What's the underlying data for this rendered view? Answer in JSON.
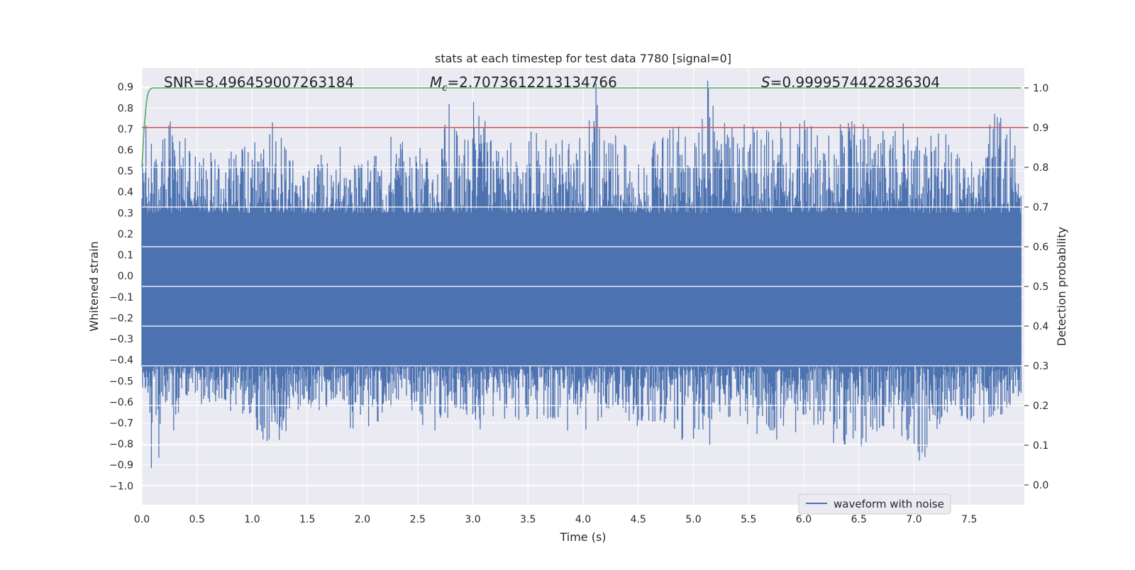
{
  "chart_data": {
    "type": "line",
    "title": "stats at each timestep for test data 7780 [signal=0]",
    "xlabel": "Time (s)",
    "ylabel": "Whitened strain",
    "ylabel_right": "Detection probability",
    "xlim": [
      0.0,
      8.0
    ],
    "ylim": [
      -1.09,
      0.99
    ],
    "ylim_right": [
      -0.05,
      1.05
    ],
    "x_ticks": [
      "0.0",
      "0.5",
      "1.0",
      "1.5",
      "2.0",
      "2.5",
      "3.0",
      "3.5",
      "4.0",
      "4.5",
      "5.0",
      "5.5",
      "6.0",
      "6.5",
      "7.0",
      "7.5"
    ],
    "y_ticks": [
      "0.9",
      "0.8",
      "0.7",
      "0.6",
      "0.5",
      "0.4",
      "0.3",
      "0.2",
      "0.1",
      "0.0",
      "−0.1",
      "−0.2",
      "−0.3",
      "−0.4",
      "−0.5",
      "−0.6",
      "−0.7",
      "−0.8",
      "−0.9",
      "−1.0"
    ],
    "y_ticks_right": [
      "1.0",
      "0.9",
      "0.8",
      "0.7",
      "0.6",
      "0.5",
      "0.4",
      "0.3",
      "0.2",
      "0.1",
      "0.0"
    ],
    "annotations": {
      "snr": "SNR=8.496459007263184",
      "mc_symbol": "M",
      "mc_subscript": "c",
      "mc_value": "=2.7073612213134766",
      "s_symbol": "S",
      "s_value": "=0.9999574422836304"
    },
    "legend": {
      "label": "waveform with noise",
      "position": "lower-right"
    },
    "grid": true,
    "colors": {
      "waveform": "#4c72b0",
      "detection_probability": "#55a868",
      "threshold": "#c44e52",
      "background": "#eaeaf2",
      "grid": "#ffffff"
    },
    "series": [
      {
        "name": "waveform with noise",
        "axis": "left",
        "description_free_values": true,
        "x": [
          0.0,
          0.03,
          0.05,
          0.08,
          0.12,
          0.15,
          0.18,
          0.22,
          0.25,
          0.3,
          0.38,
          0.5,
          0.65,
          0.8,
          0.95,
          1.1,
          1.2,
          1.3,
          1.4,
          1.5,
          1.65,
          1.8,
          1.98,
          2.1,
          2.27,
          2.4,
          2.58,
          2.7,
          2.8,
          2.9,
          3.02,
          3.2,
          3.4,
          3.55,
          3.7,
          3.85,
          4.0,
          4.1,
          4.2,
          4.35,
          4.5,
          4.6,
          4.75,
          4.9,
          5.05,
          5.15,
          5.2,
          5.35,
          5.5,
          5.65,
          5.8,
          6.0,
          6.15,
          6.3,
          6.45,
          6.6,
          6.75,
          6.9,
          7.07,
          7.2,
          7.35,
          7.5,
          7.6,
          7.75,
          7.8,
          7.9,
          7.97
        ],
        "upper": [
          0.65,
          0.84,
          0.55,
          0.62,
          0.83,
          0.6,
          0.82,
          0.6,
          0.84,
          0.65,
          0.7,
          0.6,
          0.6,
          0.62,
          0.63,
          0.65,
          0.8,
          0.63,
          0.6,
          0.5,
          0.6,
          0.62,
          0.55,
          0.6,
          0.77,
          0.6,
          0.62,
          0.65,
          0.88,
          0.65,
          0.86,
          0.62,
          0.65,
          0.7,
          0.65,
          0.7,
          0.68,
          0.99,
          0.65,
          0.7,
          0.6,
          0.65,
          0.7,
          0.72,
          0.7,
          0.99,
          0.75,
          0.72,
          0.75,
          0.7,
          0.78,
          0.75,
          0.72,
          0.77,
          0.75,
          0.72,
          0.7,
          0.75,
          0.65,
          0.68,
          0.7,
          0.55,
          0.58,
          0.82,
          0.75,
          0.76,
          0.5
        ],
        "lower": [
          -0.68,
          -0.6,
          -0.55,
          -1.0,
          -0.62,
          -0.93,
          -0.6,
          -0.65,
          -0.89,
          -0.7,
          -0.6,
          -0.62,
          -0.6,
          -0.65,
          -0.68,
          -0.8,
          -0.91,
          -0.77,
          -0.65,
          -0.62,
          -0.65,
          -0.6,
          -0.85,
          -0.7,
          -0.7,
          -0.6,
          -0.78,
          -0.72,
          -0.68,
          -0.65,
          -0.75,
          -0.68,
          -0.72,
          -0.7,
          -0.72,
          -0.75,
          -0.73,
          -0.75,
          -0.7,
          -0.68,
          -0.72,
          -0.7,
          -0.75,
          -0.8,
          -0.78,
          -0.81,
          -0.72,
          -0.7,
          -0.75,
          -0.78,
          -0.78,
          -0.75,
          -0.72,
          -0.82,
          -0.88,
          -0.78,
          -0.75,
          -0.78,
          -0.91,
          -0.75,
          -0.7,
          -0.7,
          -0.72,
          -0.68,
          -0.7,
          -0.66,
          -0.65
        ]
      },
      {
        "name": "",
        "axis": "right",
        "x": [
          0.0,
          0.01,
          0.02,
          0.03,
          0.04,
          0.05,
          0.06,
          0.08,
          0.1,
          0.15,
          0.3,
          1.0,
          2.0,
          3.0,
          4.0,
          5.0,
          6.0,
          7.0,
          7.97
        ],
        "values": [
          0.8,
          0.85,
          0.9,
          0.93,
          0.96,
          0.98,
          0.99,
          0.998,
          1.0,
          1.0,
          1.0,
          1.0,
          1.0,
          1.0,
          1.0,
          1.0,
          1.0,
          1.0,
          1.0
        ]
      },
      {
        "name": "",
        "axis": "right",
        "x": [
          0.0,
          8.0
        ],
        "values": [
          0.9,
          0.9
        ]
      }
    ]
  }
}
